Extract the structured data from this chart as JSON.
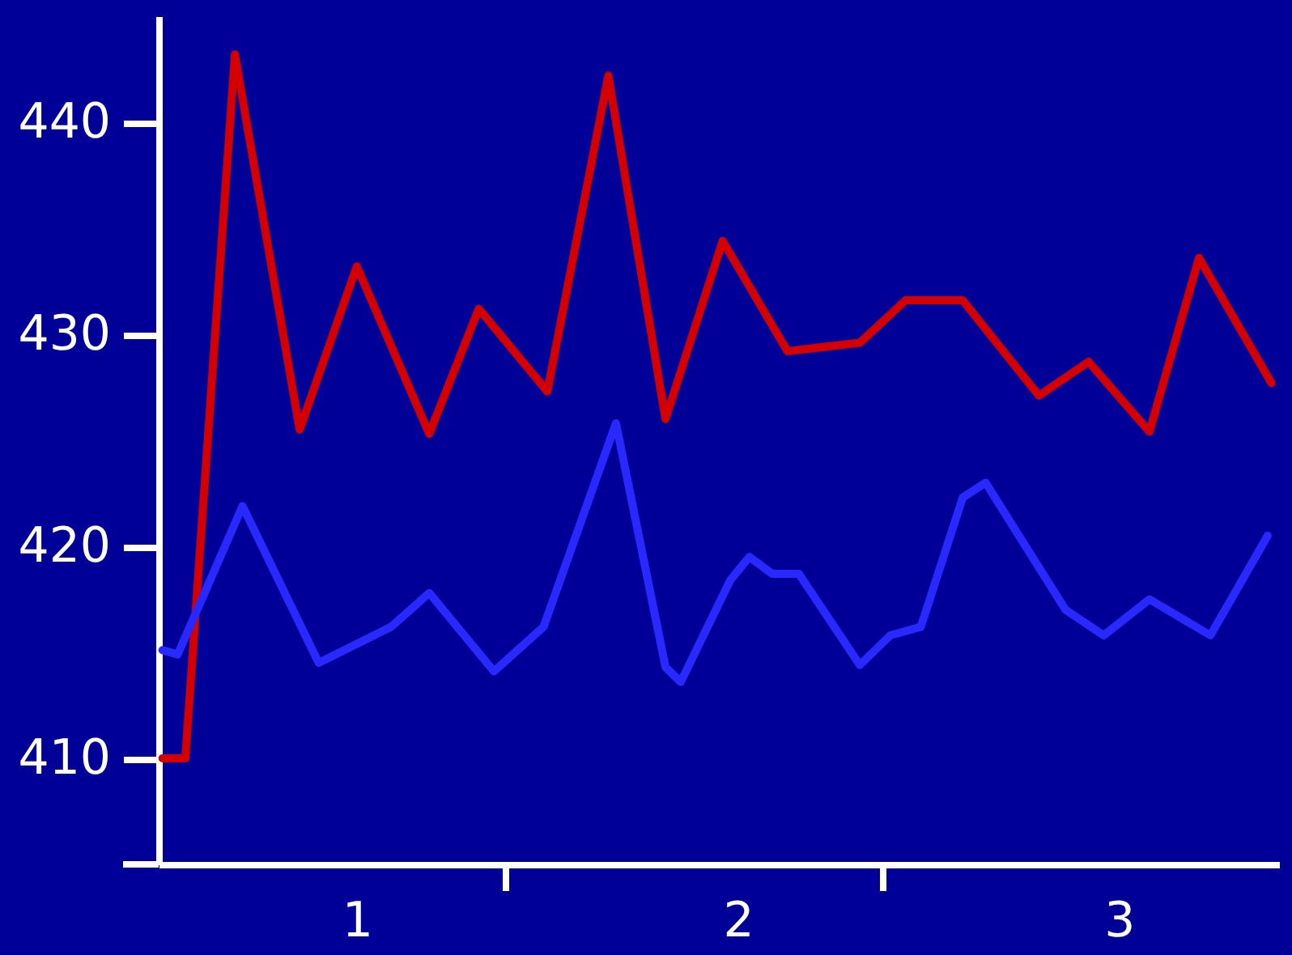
{
  "chart_data": {
    "type": "line",
    "xlim": [
      0.48,
      3.42
    ],
    "xticks": [
      {
        "value": 1,
        "label": "1"
      },
      {
        "value": 1.39,
        "label": null
      },
      {
        "value": 2,
        "label": "2"
      },
      {
        "value": 2.38,
        "label": null
      },
      {
        "value": 3,
        "label": "3"
      }
    ],
    "ylim": [
      405,
      445
    ],
    "yticks": [
      {
        "value": 405,
        "label": null
      },
      410,
      420,
      430,
      440
    ],
    "grid": false,
    "legend": false,
    "marker": "none",
    "line_style": "solid",
    "series": [
      {
        "color": "#d40000",
        "x": [
          0.49,
          0.55,
          0.68,
          0.85,
          1.0,
          1.19,
          1.32,
          1.5,
          1.66,
          1.81,
          1.96,
          2.13,
          2.32,
          2.44,
          2.59,
          2.79,
          2.92,
          3.08,
          3.21,
          3.4
        ],
        "values": [
          410,
          410,
          443.2,
          425.5,
          433.2,
          425.3,
          431.2,
          427.3,
          442.2,
          426,
          434.4,
          429.2,
          429.6,
          431.6,
          431.6,
          427.1,
          428.7,
          425.4,
          433.6,
          427.7
        ]
      },
      {
        "color": "#2828ff",
        "x": [
          0.49,
          0.53,
          0.7,
          0.9,
          1.09,
          1.19,
          1.36,
          1.49,
          1.68,
          1.81,
          1.85,
          1.98,
          2.03,
          2.09,
          2.16,
          2.32,
          2.4,
          2.48,
          2.59,
          2.65,
          2.86,
          2.96,
          3.08,
          3.24,
          3.39
        ],
        "values": [
          415.1,
          414.9,
          421.9,
          414.5,
          416.2,
          417.8,
          414.1,
          416.2,
          425.8,
          414.3,
          413.6,
          418.4,
          419.5,
          418.7,
          418.7,
          414.4,
          415.8,
          416.2,
          422.3,
          423,
          417,
          415.8,
          417.5,
          415.8,
          420.5
        ]
      }
    ]
  }
}
